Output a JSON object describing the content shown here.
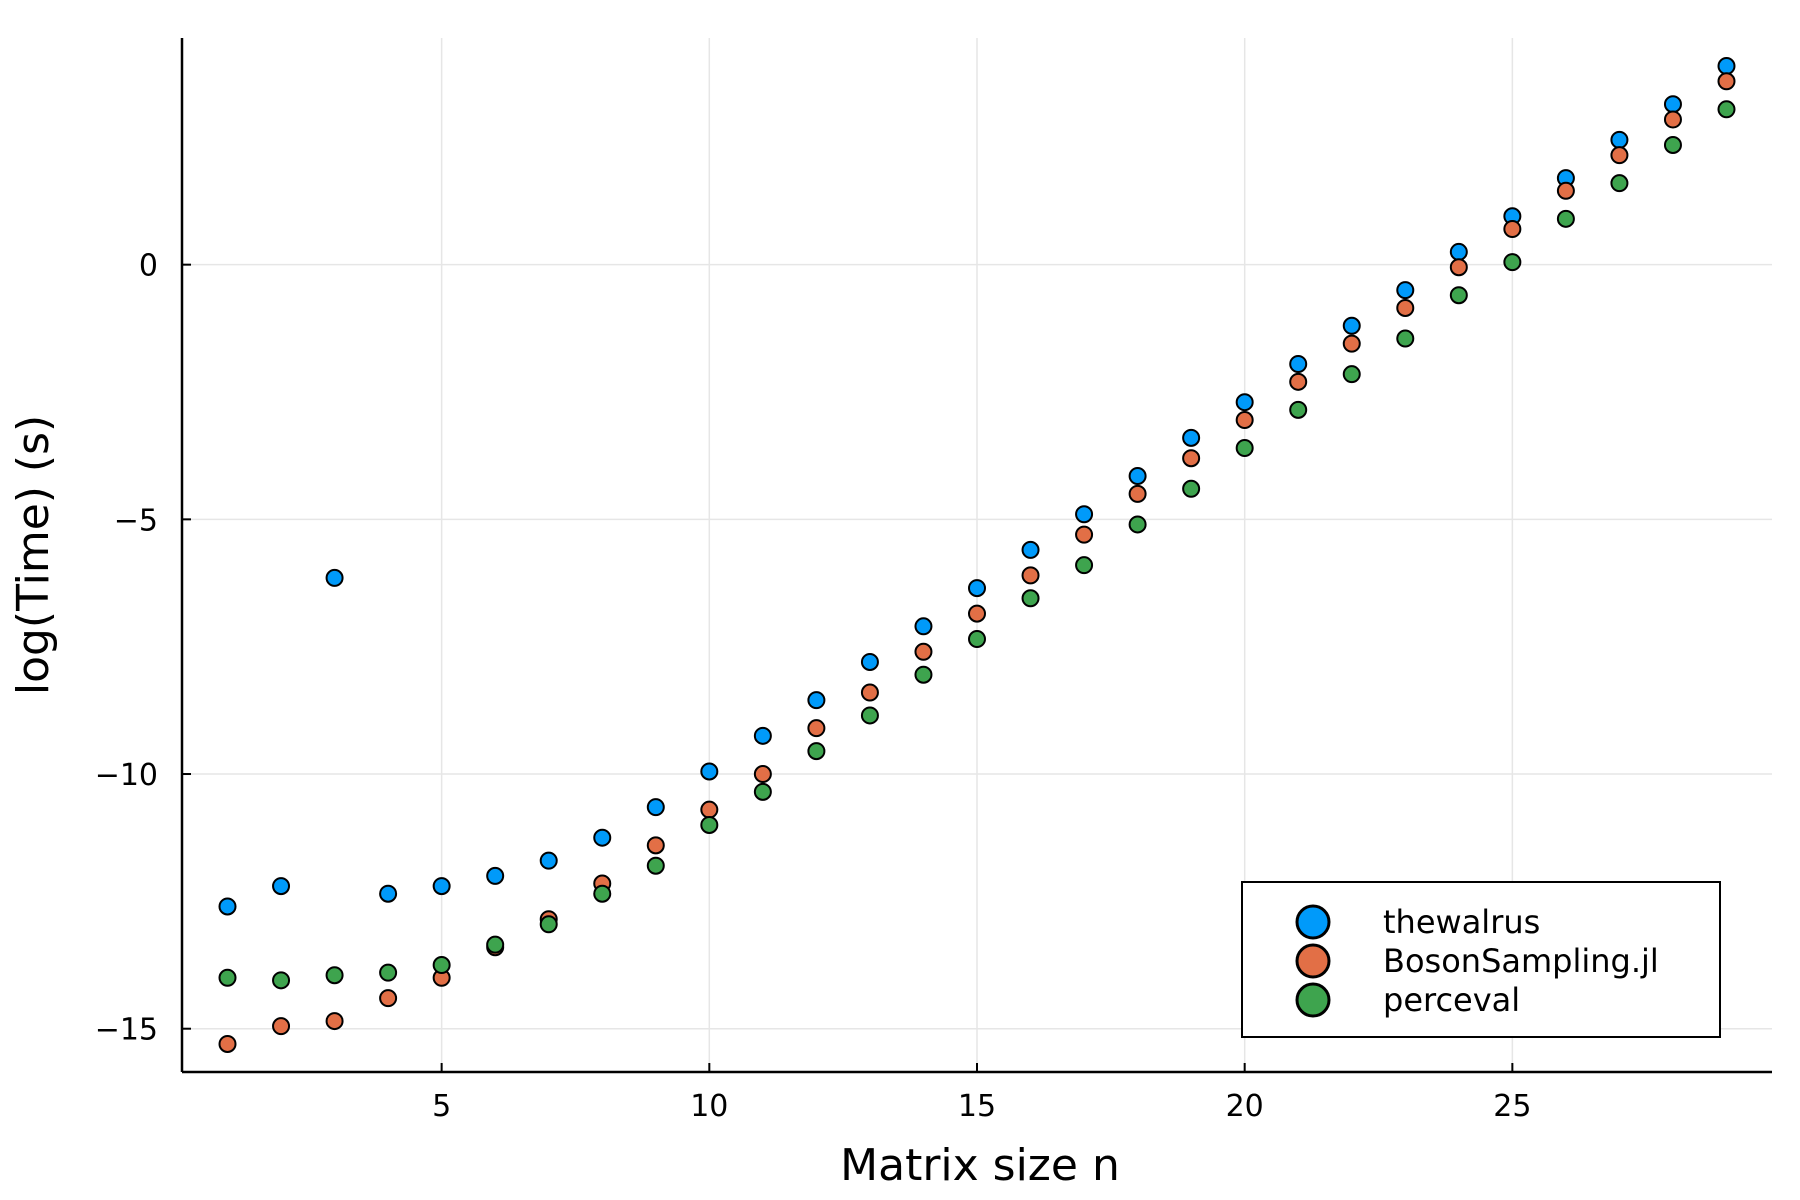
{
  "chart_data": {
    "type": "scatter",
    "title": "",
    "xlabel": "Matrix size n",
    "ylabel": "log(Time) (s)",
    "xlim": [
      0.15,
      29.85
    ],
    "ylim": [
      -15.85,
      4.45
    ],
    "x_ticks": [
      5,
      10,
      15,
      20,
      25
    ],
    "y_ticks": [
      -15,
      -10,
      -5,
      0
    ],
    "x_tick_labels": [
      "5",
      "10",
      "15",
      "20",
      "25"
    ],
    "y_tick_labels": [
      "−15",
      "−10",
      "−5",
      "0"
    ],
    "grid": true,
    "legend_position": "bottom-right",
    "x": [
      1,
      2,
      3,
      4,
      5,
      6,
      7,
      8,
      9,
      10,
      11,
      12,
      13,
      14,
      15,
      16,
      17,
      18,
      19,
      20,
      21,
      22,
      23,
      24,
      25,
      26,
      27,
      28,
      29
    ],
    "series": [
      {
        "name": "thewalrus",
        "color": "#009AFA",
        "values": [
          -12.6,
          -12.2,
          -6.15,
          -12.35,
          -12.2,
          -12.0,
          -11.7,
          -11.25,
          -10.65,
          -9.95,
          -9.25,
          -8.55,
          -7.8,
          -7.1,
          -6.35,
          -5.6,
          -4.9,
          -4.15,
          -3.4,
          -2.7,
          -1.95,
          -1.2,
          -0.5,
          0.25,
          0.95,
          1.7,
          2.45,
          3.15,
          3.9
        ]
      },
      {
        "name": "BosonSampling.jl",
        "color": "#E26F46",
        "values": [
          -15.3,
          -14.95,
          -14.85,
          -14.4,
          -14.0,
          -13.4,
          -12.85,
          -12.15,
          -11.4,
          -10.7,
          -10.0,
          -9.1,
          -8.4,
          -7.6,
          -6.85,
          -6.1,
          -5.3,
          -4.5,
          -3.8,
          -3.05,
          -2.3,
          -1.55,
          -0.85,
          -0.05,
          0.7,
          1.45,
          2.15,
          2.85,
          3.6
        ]
      },
      {
        "name": "perceval",
        "color": "#3EA44E",
        "values": [
          -14.0,
          -14.05,
          -13.95,
          -13.9,
          -13.75,
          -13.35,
          -12.95,
          -12.35,
          -11.8,
          -11.0,
          -10.35,
          -9.55,
          -8.85,
          -8.05,
          -7.35,
          -6.55,
          -5.9,
          -5.1,
          -4.4,
          -3.6,
          -2.85,
          -2.15,
          -1.45,
          -0.6,
          0.05,
          0.9,
          1.6,
          2.35,
          3.05
        ]
      }
    ]
  }
}
